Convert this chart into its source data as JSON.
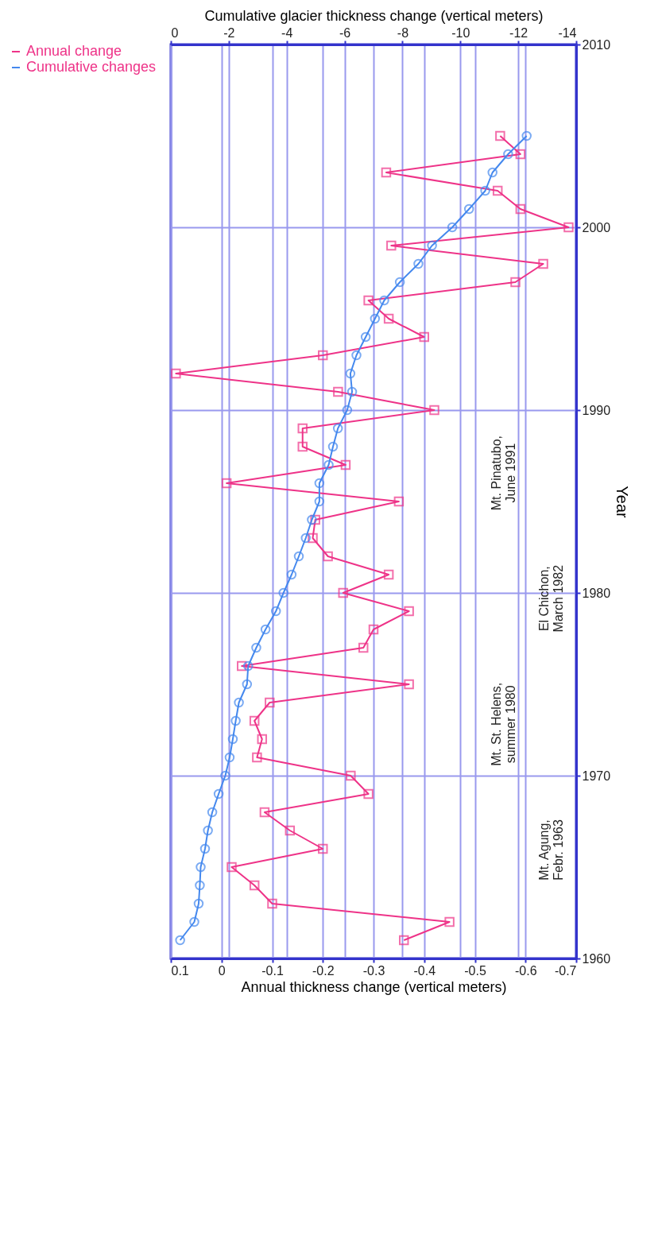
{
  "chart_data": {
    "type": "line",
    "orientation": "horizontal",
    "xlabel": "Annual thickness change (vertical meters)",
    "x2label": "Cumulative glacier thickness change (vertical meters)",
    "ylabel": "Year",
    "xlim": [
      0.1,
      -0.7
    ],
    "xticks": [
      0.1,
      0,
      -0.1,
      -0.2,
      -0.3,
      -0.4,
      -0.5,
      -0.6,
      -0.7
    ],
    "x2lim": [
      0,
      -14
    ],
    "x2ticks": [
      0,
      -2,
      -4,
      -6,
      -8,
      -10,
      -12,
      -14
    ],
    "ylim": [
      1960,
      2010
    ],
    "yticks": [
      1960,
      1970,
      1980,
      1990,
      2000,
      2010
    ],
    "grid": true,
    "legend": "left",
    "series": [
      {
        "name": "Annual change",
        "color": "#ee3388",
        "marker": "square",
        "x": [
          1961,
          1962,
          1963,
          1964,
          1965,
          1966,
          1967,
          1968,
          1969,
          1970,
          1971,
          1972,
          1973,
          1974,
          1975,
          1976,
          1977,
          1978,
          1979,
          1980,
          1981,
          1982,
          1983,
          1984,
          1985,
          1986,
          1987,
          1988,
          1989,
          1990,
          1991,
          1992,
          1993,
          1994,
          1995,
          1996,
          1997,
          1998,
          1999,
          2000,
          2001,
          2002,
          2003,
          2004,
          2005
        ],
        "values": [
          -0.36,
          -0.45,
          -0.1,
          -0.065,
          -0.02,
          -0.2,
          -0.135,
          -0.085,
          -0.29,
          -0.255,
          -0.07,
          -0.08,
          -0.065,
          -0.095,
          -0.37,
          -0.04,
          -0.28,
          -0.3,
          -0.37,
          -0.24,
          -0.33,
          -0.21,
          -0.18,
          -0.185,
          -0.35,
          -0.01,
          -0.245,
          -0.16,
          -0.16,
          -0.42,
          -0.23,
          0.09,
          -0.2,
          -0.4,
          -0.33,
          -0.29,
          -0.58,
          -0.635,
          -0.335,
          -0.685,
          -0.59,
          -0.545,
          -0.325,
          -0.59,
          -0.55
        ]
      },
      {
        "name": "Cumulative changes",
        "color": "#4488ee",
        "marker": "circle",
        "axis": "x2",
        "x": [
          1961,
          1962,
          1963,
          1964,
          1965,
          1966,
          1967,
          1968,
          1969,
          1970,
          1971,
          1972,
          1973,
          1974,
          1975,
          1976,
          1977,
          1978,
          1979,
          1980,
          1981,
          1982,
          1983,
          1984,
          1985,
          1986,
          1987,
          1988,
          1989,
          1990,
          1991,
          1992,
          1993,
          1994,
          1995,
          1996,
          1997,
          1998,
          1999,
          2000,
          2001,
          2002,
          2003,
          2004,
          2005
        ],
        "values": [
          -0.32,
          -0.81,
          -0.96,
          -1.0,
          -1.03,
          -1.18,
          -1.28,
          -1.43,
          -1.65,
          -1.88,
          -2.03,
          -2.14,
          -2.24,
          -2.35,
          -2.63,
          -2.67,
          -2.95,
          -3.27,
          -3.63,
          -3.89,
          -4.17,
          -4.42,
          -4.66,
          -4.87,
          -5.13,
          -5.13,
          -5.45,
          -5.6,
          -5.77,
          -6.09,
          -6.26,
          -6.2,
          -6.41,
          -6.73,
          -7.05,
          -7.37,
          -7.91,
          -8.55,
          -9.02,
          -9.72,
          -10.3,
          -10.86,
          -11.11,
          -11.65,
          -12.29
        ]
      }
    ],
    "annotations": [
      "Mt. Agung,\nFebr. 1963",
      "Mt. St. Helens,\nsummer 1980",
      "El Chichon,\nMarch 1982",
      "Mt. Pinatubo,\nJune 1991"
    ]
  }
}
